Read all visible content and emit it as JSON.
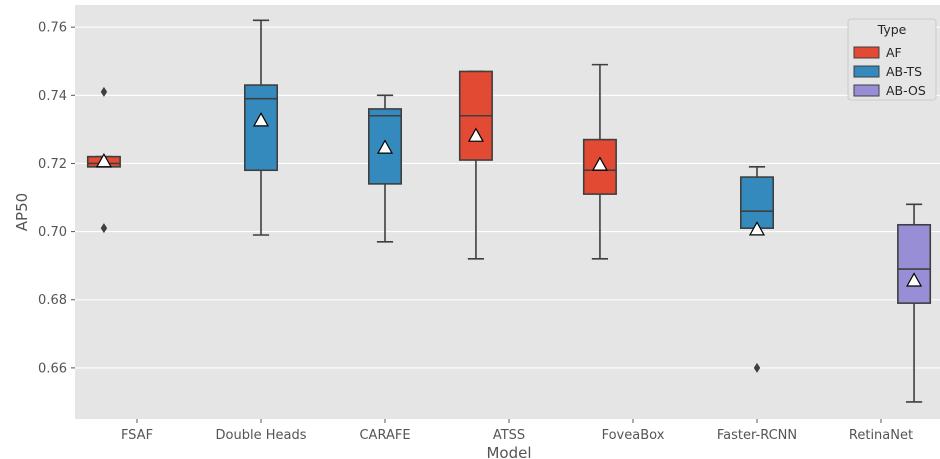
{
  "chart_data": {
    "type": "box",
    "title": "",
    "xlabel": "Model",
    "ylabel": "AP50",
    "ylim": [
      0.645,
      0.7665
    ],
    "yticks": [
      0.66,
      0.68,
      0.7,
      0.72,
      0.74,
      0.76
    ],
    "ytick_labels": [
      "0.66",
      "0.68",
      "0.70",
      "0.72",
      "0.74",
      "0.76"
    ],
    "grid": true,
    "legend": {
      "title": "Type",
      "position": "top-right",
      "entries": [
        {
          "name": "AF",
          "color": "#E24A33"
        },
        {
          "name": "AB-TS",
          "color": "#348ABD"
        },
        {
          "name": "AB-OS",
          "color": "#988ED5"
        }
      ]
    },
    "hue_order": [
      "AF",
      "AB-TS",
      "AB-OS"
    ],
    "categories": [
      "FSAF",
      "Double Heads",
      "CARAFE",
      "ATSS",
      "FoveaBox",
      "Faster-RCNN",
      "RetinaNet"
    ],
    "boxes": [
      {
        "category": "FSAF",
        "type": "AF",
        "whisker_low": 0.719,
        "q1": 0.719,
        "median": 0.72,
        "q3": 0.722,
        "whisker_high": 0.722,
        "mean": 0.7205,
        "outliers": [
          0.741,
          0.701
        ]
      },
      {
        "category": "Double Heads",
        "type": "AB-TS",
        "whisker_low": 0.699,
        "q1": 0.718,
        "median": 0.739,
        "q3": 0.743,
        "whisker_high": 0.762,
        "mean": 0.7325,
        "outliers": []
      },
      {
        "category": "CARAFE",
        "type": "AB-TS",
        "whisker_low": 0.697,
        "q1": 0.714,
        "median": 0.734,
        "q3": 0.736,
        "whisker_high": 0.74,
        "mean": 0.7245,
        "outliers": []
      },
      {
        "category": "ATSS",
        "type": "AF",
        "whisker_low": 0.692,
        "q1": 0.721,
        "median": 0.734,
        "q3": 0.747,
        "whisker_high": 0.747,
        "mean": 0.728,
        "outliers": []
      },
      {
        "category": "FoveaBox",
        "type": "AF",
        "whisker_low": 0.692,
        "q1": 0.711,
        "median": 0.718,
        "q3": 0.727,
        "whisker_high": 0.749,
        "mean": 0.7195,
        "outliers": []
      },
      {
        "category": "Faster-RCNN",
        "type": "AB-TS",
        "whisker_low": 0.701,
        "q1": 0.701,
        "median": 0.706,
        "q3": 0.716,
        "whisker_high": 0.719,
        "mean": 0.7005,
        "outliers": [
          0.66
        ]
      },
      {
        "category": "RetinaNet",
        "type": "AB-OS",
        "whisker_low": 0.65,
        "q1": 0.679,
        "median": 0.689,
        "q3": 0.702,
        "whisker_high": 0.708,
        "mean": 0.6855,
        "outliers": []
      }
    ]
  }
}
